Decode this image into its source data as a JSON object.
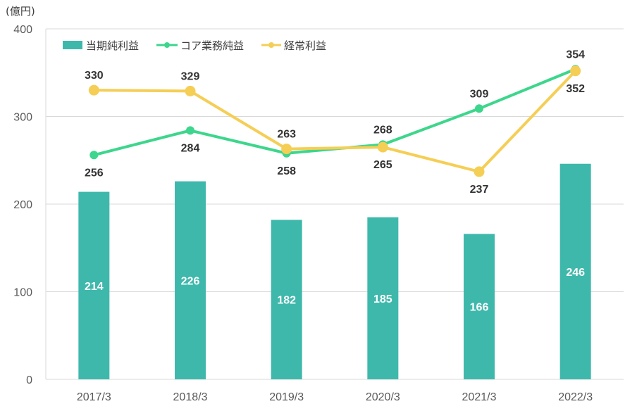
{
  "chart_data": {
    "type": "bar",
    "unit_label": "(億円)",
    "categories": [
      "2017/3",
      "2018/3",
      "2019/3",
      "2020/3",
      "2021/3",
      "2022/3"
    ],
    "ylim": [
      0,
      400
    ],
    "yticks": [
      "0",
      "100",
      "200",
      "300",
      "400"
    ],
    "grid": true,
    "legend_position": "top-left",
    "series": [
      {
        "name": "当期純利益",
        "type": "bar",
        "color": "#3FB8AC",
        "values": [
          214,
          226,
          182,
          185,
          166,
          246
        ]
      },
      {
        "name": "コア業務純益",
        "type": "line",
        "color": "#3DD68C",
        "values": [
          256,
          284,
          258,
          268,
          309,
          354
        ]
      },
      {
        "name": "経常利益",
        "type": "line",
        "color": "#F5CE55",
        "values": [
          330,
          329,
          263,
          265,
          237,
          352
        ]
      }
    ]
  }
}
